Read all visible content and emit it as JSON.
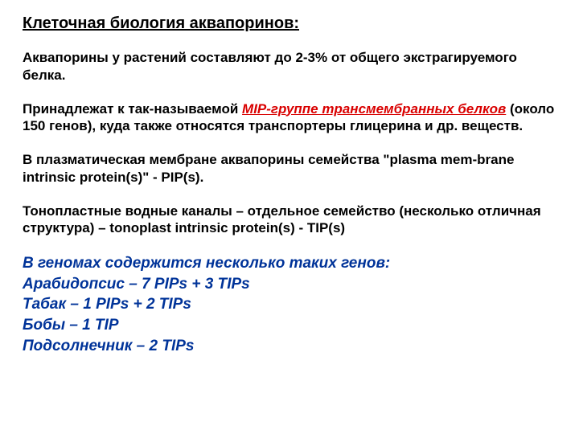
{
  "title": "Клеточная биология аквапоринов:",
  "p1": "Аквапорины у растений составляют до 2-3% от общего экстрагируемого белка.",
  "p2_a": "Принадлежат к так-называемой ",
  "p2_mip": "MIP-группе трансмембранных белков",
  "p2_b": " (около 150 генов), куда также относятся транспортеры глицерина и др. веществ.",
  "p3": "В плазматическая мембране аквапорины семейства \"plasma mem-brane intrinsic protein(s)\" -  PIP(s).",
  "p4": "Тонопластные водные каналы – отдельное семейство (несколько отличная структура) – tonoplast intrinsic protein(s) -  TIP(s)",
  "genomes": {
    "heading": "В геномах содержится несколько таких генов:",
    "lines": [
      "Арабидопсис – 7 PIPs + 3 TIPs",
      "Табак – 1 PIPs + 2 TIPs",
      "Бобы – 1 TIP",
      "Подсолнечник – 2 TIPs"
    ]
  },
  "colors": {
    "text": "#000000",
    "mip": "#d90000",
    "genomes": "#003399",
    "background": "#ffffff"
  },
  "fonts": {
    "base_family": "Arial",
    "title_size_pt": 15,
    "body_size_pt": 13,
    "genomes_size_pt": 14
  }
}
